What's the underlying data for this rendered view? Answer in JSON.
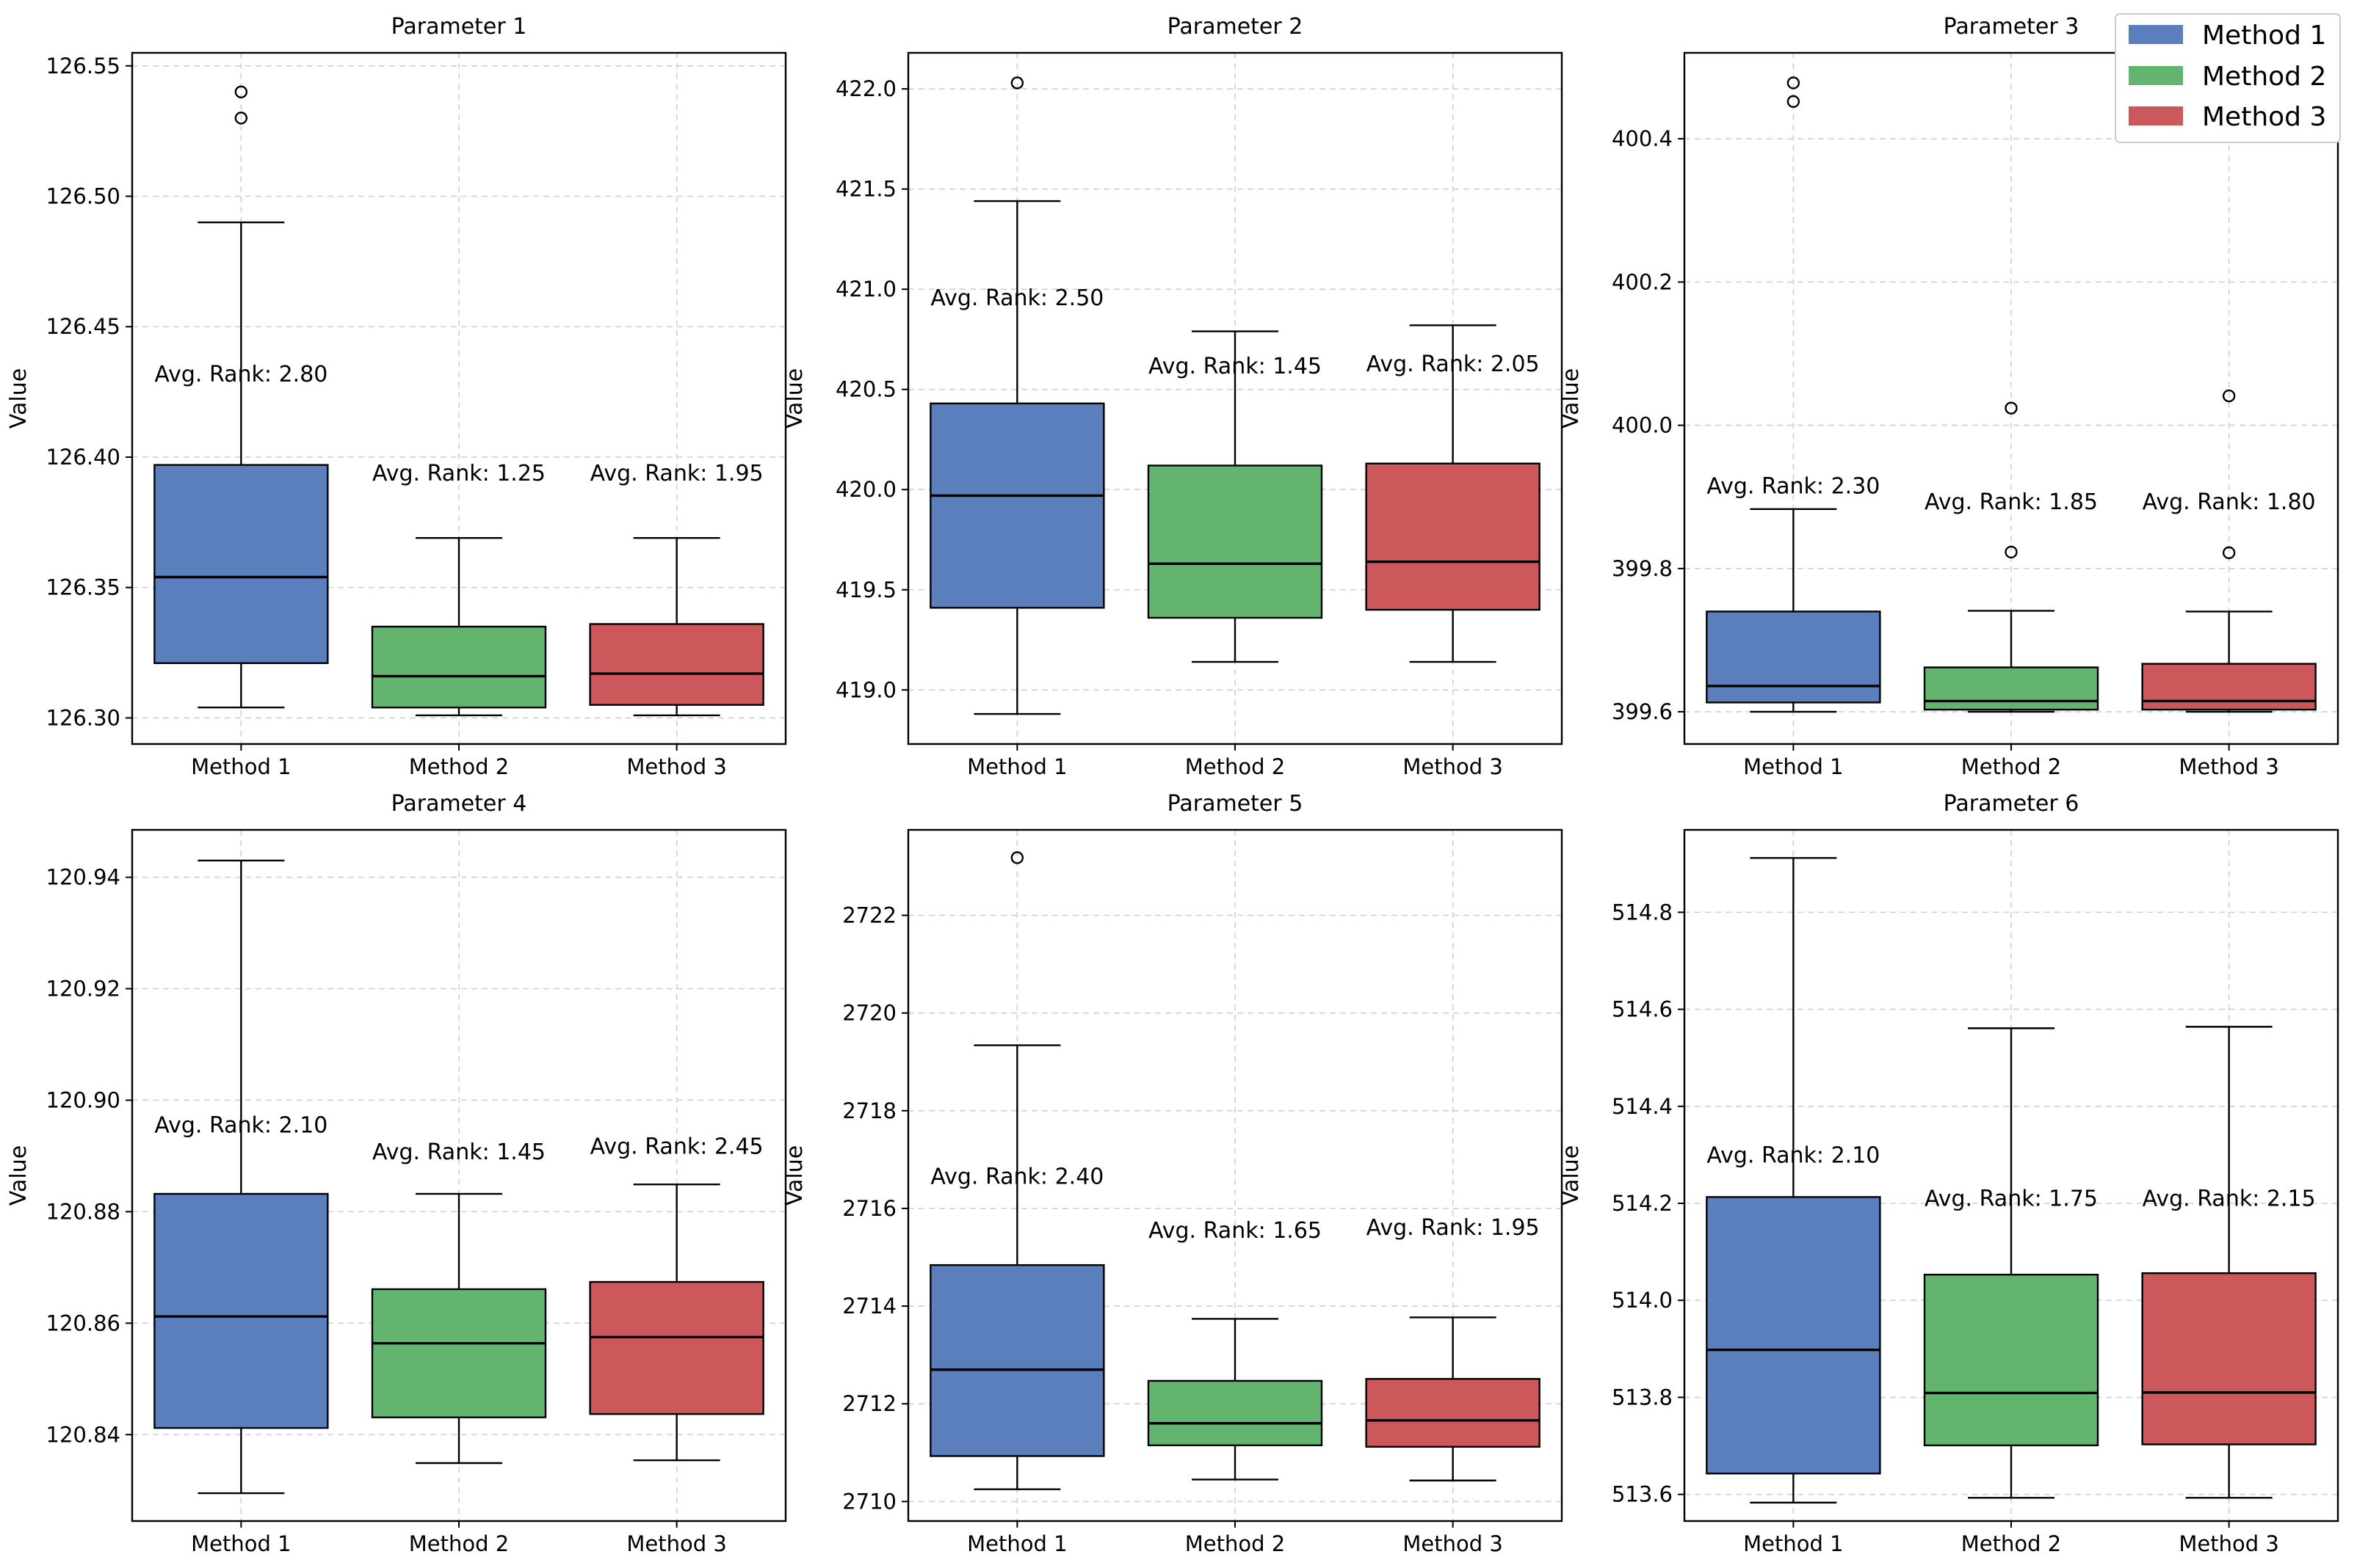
{
  "chart_data": [
    {
      "type": "box",
      "title": "Parameter 1",
      "ylabel": "Value",
      "ylim": [
        126.29,
        126.555
      ],
      "yticks": [
        "126.30",
        "126.35",
        "126.40",
        "126.45",
        "126.50",
        "126.55"
      ],
      "categories": [
        "Method 1",
        "Method 2",
        "Method 3"
      ],
      "boxes": [
        {
          "name": "Method 1",
          "whislo": 126.304,
          "q1": 126.321,
          "med": 126.354,
          "q3": 126.397,
          "whishi": 126.49,
          "fliers": [
            126.53,
            126.54
          ],
          "rank_label": "Avg. Rank: 2.80",
          "rank_y": 126.429
        },
        {
          "name": "Method 2",
          "whislo": 126.301,
          "q1": 126.304,
          "med": 126.316,
          "q3": 126.335,
          "whishi": 126.369,
          "fliers": [],
          "rank_label": "Avg. Rank: 1.25",
          "rank_y": 126.391
        },
        {
          "name": "Method 3",
          "whislo": 126.301,
          "q1": 126.305,
          "med": 126.317,
          "q3": 126.336,
          "whishi": 126.369,
          "fliers": [],
          "rank_label": "Avg. Rank: 1.95",
          "rank_y": 126.391
        }
      ]
    },
    {
      "type": "box",
      "title": "Parameter 2",
      "ylabel": "Value",
      "ylim": [
        418.73,
        422.18
      ],
      "yticks": [
        "419.0",
        "419.5",
        "420.0",
        "420.5",
        "421.0",
        "421.5",
        "422.0"
      ],
      "categories": [
        "Method 1",
        "Method 2",
        "Method 3"
      ],
      "boxes": [
        {
          "name": "Method 1",
          "whislo": 418.88,
          "q1": 419.41,
          "med": 419.97,
          "q3": 420.43,
          "whishi": 421.44,
          "fliers": [
            422.03
          ],
          "rank_label": "Avg. Rank: 2.50",
          "rank_y": 420.92
        },
        {
          "name": "Method 2",
          "whislo": 419.14,
          "q1": 419.36,
          "med": 419.63,
          "q3": 420.12,
          "whishi": 420.79,
          "fliers": [],
          "rank_label": "Avg. Rank: 1.45",
          "rank_y": 420.58
        },
        {
          "name": "Method 3",
          "whislo": 419.14,
          "q1": 419.4,
          "med": 419.64,
          "q3": 420.13,
          "whishi": 420.82,
          "fliers": [],
          "rank_label": "Avg. Rank: 2.05",
          "rank_y": 420.59
        }
      ]
    },
    {
      "type": "box",
      "title": "Parameter 3",
      "ylabel": "Value",
      "ylim": [
        399.555,
        400.52
      ],
      "yticks": [
        "399.6",
        "399.8",
        "400.0",
        "400.2",
        "400.4"
      ],
      "categories": [
        "Method 1",
        "Method 2",
        "Method 3"
      ],
      "boxes": [
        {
          "name": "Method 1",
          "whislo": 399.6,
          "q1": 399.613,
          "med": 399.636,
          "q3": 399.74,
          "whishi": 399.883,
          "fliers": [
            400.452,
            400.478
          ],
          "rank_label": "Avg. Rank: 2.30",
          "rank_y": 399.905
        },
        {
          "name": "Method 2",
          "whislo": 399.6,
          "q1": 399.603,
          "med": 399.615,
          "q3": 399.662,
          "whishi": 399.741,
          "fliers": [
            399.823,
            400.024
          ],
          "rank_label": "Avg. Rank: 1.85",
          "rank_y": 399.883
        },
        {
          "name": "Method 3",
          "whislo": 399.6,
          "q1": 399.603,
          "med": 399.615,
          "q3": 399.667,
          "whishi": 399.74,
          "fliers": [
            399.822,
            400.041
          ],
          "rank_label": "Avg. Rank: 1.80",
          "rank_y": 399.883
        }
      ]
    },
    {
      "type": "box",
      "title": "Parameter 4",
      "ylabel": "Value",
      "ylim": [
        120.8245,
        120.9485
      ],
      "yticks": [
        "120.84",
        "120.86",
        "120.88",
        "120.90",
        "120.92",
        "120.94"
      ],
      "categories": [
        "Method 1",
        "Method 2",
        "Method 3"
      ],
      "boxes": [
        {
          "name": "Method 1",
          "whislo": 120.8295,
          "q1": 120.8412,
          "med": 120.8612,
          "q3": 120.8832,
          "whishi": 120.943,
          "fliers": [],
          "rank_label": "Avg. Rank: 2.10",
          "rank_y": 120.8942
        },
        {
          "name": "Method 2",
          "whislo": 120.8349,
          "q1": 120.8431,
          "med": 120.8564,
          "q3": 120.8661,
          "whishi": 120.8832,
          "fliers": [],
          "rank_label": "Avg. Rank: 1.45",
          "rank_y": 120.8894
        },
        {
          "name": "Method 3",
          "whislo": 120.8354,
          "q1": 120.8437,
          "med": 120.8575,
          "q3": 120.8674,
          "whishi": 120.8849,
          "fliers": [],
          "rank_label": "Avg. Rank: 2.45",
          "rank_y": 120.8904
        }
      ]
    },
    {
      "type": "box",
      "title": "Parameter 5",
      "ylabel": "Value",
      "ylim": [
        2709.6,
        2723.75
      ],
      "yticks": [
        "2710",
        "2712",
        "2714",
        "2716",
        "2718",
        "2720",
        "2722"
      ],
      "categories": [
        "Method 1",
        "Method 2",
        "Method 3"
      ],
      "boxes": [
        {
          "name": "Method 1",
          "whislo": 2710.25,
          "q1": 2710.93,
          "med": 2712.7,
          "q3": 2714.84,
          "whishi": 2719.34,
          "fliers": [
            2723.18
          ],
          "rank_label": "Avg. Rank: 2.40",
          "rank_y": 2716.5
        },
        {
          "name": "Method 2",
          "whislo": 2710.45,
          "q1": 2711.15,
          "med": 2711.6,
          "q3": 2712.47,
          "whishi": 2713.74,
          "fliers": [],
          "rank_label": "Avg. Rank: 1.65",
          "rank_y": 2715.4
        },
        {
          "name": "Method 3",
          "whislo": 2710.43,
          "q1": 2711.12,
          "med": 2711.66,
          "q3": 2712.51,
          "whishi": 2713.77,
          "fliers": [],
          "rank_label": "Avg. Rank: 1.95",
          "rank_y": 2715.46
        }
      ]
    },
    {
      "type": "box",
      "title": "Parameter 6",
      "ylabel": "Value",
      "ylim": [
        513.545,
        514.97
      ],
      "yticks": [
        "513.6",
        "513.8",
        "514.0",
        "514.2",
        "514.4",
        "514.6",
        "514.8"
      ],
      "categories": [
        "Method 1",
        "Method 2",
        "Method 3"
      ],
      "boxes": [
        {
          "name": "Method 1",
          "whislo": 513.583,
          "q1": 513.643,
          "med": 513.898,
          "q3": 514.213,
          "whishi": 514.912,
          "fliers": [],
          "rank_label": "Avg. Rank: 2.10",
          "rank_y": 514.284
        },
        {
          "name": "Method 2",
          "whislo": 513.593,
          "q1": 513.701,
          "med": 513.809,
          "q3": 514.053,
          "whishi": 514.561,
          "fliers": [],
          "rank_label": "Avg. Rank: 1.75",
          "rank_y": 514.195
        },
        {
          "name": "Method 3",
          "whislo": 513.593,
          "q1": 513.703,
          "med": 513.81,
          "q3": 514.056,
          "whishi": 514.564,
          "fliers": [],
          "rank_label": "Avg. Rank: 2.15",
          "rank_y": 514.195
        }
      ]
    }
  ],
  "legend": {
    "placement": "top-right",
    "entries": [
      {
        "label": "Method 1",
        "color": "#5b7fbc"
      },
      {
        "label": "Method 2",
        "color": "#62b46f"
      },
      {
        "label": "Method 3",
        "color": "#cc585c"
      }
    ]
  },
  "colors": [
    "#5b7fbc",
    "#62b46f",
    "#cc585c"
  ]
}
